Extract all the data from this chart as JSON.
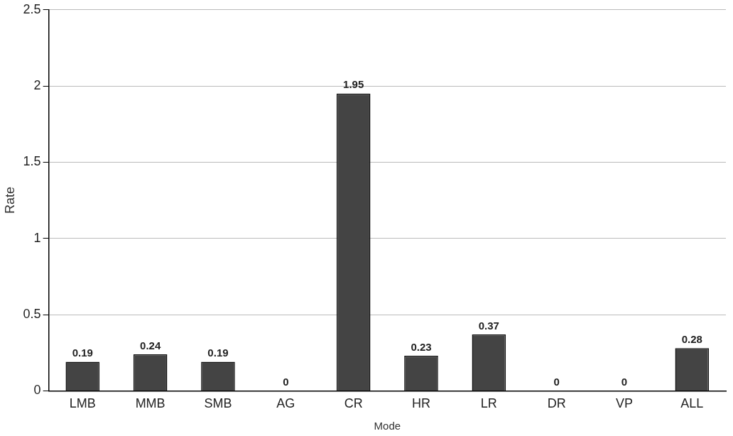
{
  "chart_data": {
    "type": "bar",
    "xlabel": "Mode",
    "ylabel": "Rate",
    "categories": [
      "LMB",
      "MMB",
      "SMB",
      "AG",
      "CR",
      "HR",
      "LR",
      "DR",
      "VP",
      "ALL"
    ],
    "values": [
      0.19,
      0.24,
      0.19,
      0,
      1.95,
      0.23,
      0.37,
      0,
      0,
      0.28
    ],
    "color": "#444444",
    "ylim": [
      0,
      2.5
    ],
    "yticks": [
      0,
      0.5,
      1,
      1.5,
      2,
      2.5
    ],
    "grid": "y",
    "data_labels": true
  }
}
